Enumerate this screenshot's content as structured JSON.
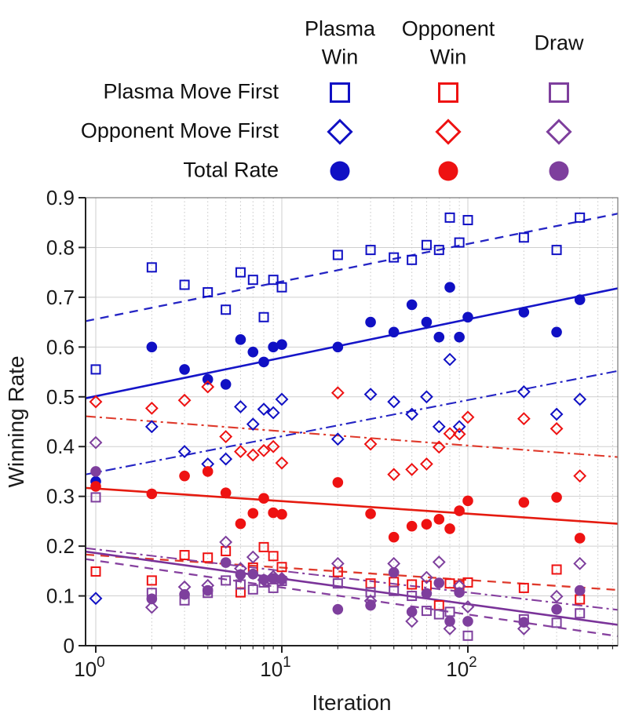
{
  "figure_title": "Winning rate vs iteration scatter plot with trend lines",
  "palette": {
    "blue": "#1010c4",
    "red": "#ee1212",
    "purple": "#7e3f9d",
    "blue_line": "#2424c4",
    "red_line": "#df3a2c",
    "purple_line": "#86419f",
    "grid_major": "#cfcfcf",
    "grid_minor": "#c7c7c7",
    "axis": "#222222",
    "box": "#777777",
    "text": "#1b1b1b"
  },
  "legend": {
    "columns": [
      {
        "id": "plasma-win",
        "header_lines": [
          "Plasma",
          "Win"
        ],
        "color": "#1010c4"
      },
      {
        "id": "opponent-win",
        "header_lines": [
          "Opponent",
          "Win"
        ],
        "color": "#ee1212"
      },
      {
        "id": "draw",
        "header_lines": [
          "Draw"
        ],
        "color": "#7e3f9d"
      }
    ],
    "rows": [
      {
        "id": "plasma-move-first",
        "label": "Plasma Move First",
        "marker": "square"
      },
      {
        "id": "opponent-move-first",
        "label": "Opponent Move First",
        "marker": "diamond"
      },
      {
        "id": "total-rate",
        "label": "Total Rate",
        "marker": "circle"
      }
    ]
  },
  "axes": {
    "xlabel": "Iteration",
    "ylabel": "Winning Rate",
    "x_scale": "log",
    "ylim": [
      0,
      0.9
    ],
    "ytick_labels": [
      "0",
      "0.1",
      "0.2",
      "0.3",
      "0.4",
      "0.5",
      "0.6",
      "0.7",
      "0.8",
      "0.9"
    ],
    "xticks": [
      {
        "mantissa": "10",
        "exponent": "0",
        "value": 1
      },
      {
        "mantissa": "10",
        "exponent": "1",
        "value": 10
      },
      {
        "mantissa": "10",
        "exponent": "2",
        "value": 100
      }
    ]
  },
  "chart_data": {
    "type": "scatter",
    "x_scale": "log",
    "title": "",
    "xlabel": "Iteration",
    "ylabel": "Winning Rate",
    "xlim": [
      0.88,
      640
    ],
    "ylim": [
      0,
      0.9
    ],
    "grid": true,
    "series": [
      {
        "name": "plasma-first-plasma-win",
        "outcome": "Plasma Win",
        "mover": "Plasma Move First",
        "marker": "square",
        "color": "#1010c4",
        "points": [
          [
            1,
            0.555
          ],
          [
            2,
            0.76
          ],
          [
            3,
            0.725
          ],
          [
            4,
            0.71
          ],
          [
            5,
            0.675
          ],
          [
            6,
            0.75
          ],
          [
            7,
            0.735
          ],
          [
            8,
            0.66
          ],
          [
            9,
            0.735
          ],
          [
            10,
            0.72
          ],
          [
            20,
            0.785
          ],
          [
            30,
            0.795
          ],
          [
            40,
            0.78
          ],
          [
            50,
            0.775
          ],
          [
            60,
            0.805
          ],
          [
            70,
            0.795
          ],
          [
            80,
            0.86
          ],
          [
            90,
            0.81
          ],
          [
            100,
            0.855
          ],
          [
            200,
            0.82
          ],
          [
            300,
            0.795
          ],
          [
            400,
            0.86
          ]
        ]
      },
      {
        "name": "opponent-first-plasma-win",
        "outcome": "Plasma Win",
        "mover": "Opponent Move First",
        "marker": "diamond",
        "color": "#1010c4",
        "points": [
          [
            1,
            0.095
          ],
          [
            2,
            0.44
          ],
          [
            3,
            0.39
          ],
          [
            4,
            0.365
          ],
          [
            5,
            0.375
          ],
          [
            6,
            0.48
          ],
          [
            7,
            0.445
          ],
          [
            8,
            0.475
          ],
          [
            9,
            0.468
          ],
          [
            10,
            0.495
          ],
          [
            20,
            0.415
          ],
          [
            30,
            0.505
          ],
          [
            40,
            0.49
          ],
          [
            50,
            0.465
          ],
          [
            60,
            0.5
          ],
          [
            70,
            0.44
          ],
          [
            80,
            0.575
          ],
          [
            90,
            0.44
          ],
          [
            200,
            0.51
          ],
          [
            300,
            0.465
          ],
          [
            400,
            0.495
          ]
        ]
      },
      {
        "name": "total-plasma-win",
        "outcome": "Plasma Win",
        "mover": "Total Rate",
        "marker": "circle",
        "color": "#1010c4",
        "points": [
          [
            1,
            0.33
          ],
          [
            2,
            0.6
          ],
          [
            3,
            0.555
          ],
          [
            4,
            0.535
          ],
          [
            5,
            0.525
          ],
          [
            6,
            0.615
          ],
          [
            7,
            0.59
          ],
          [
            8,
            0.57
          ],
          [
            9,
            0.6
          ],
          [
            10,
            0.605
          ],
          [
            20,
            0.6
          ],
          [
            30,
            0.65
          ],
          [
            40,
            0.63
          ],
          [
            50,
            0.685
          ],
          [
            60,
            0.65
          ],
          [
            70,
            0.62
          ],
          [
            80,
            0.72
          ],
          [
            90,
            0.62
          ],
          [
            100,
            0.66
          ],
          [
            200,
            0.67
          ],
          [
            300,
            0.63
          ],
          [
            400,
            0.695
          ]
        ]
      },
      {
        "name": "plasma-first-opponent-win",
        "outcome": "Opponent Win",
        "mover": "Plasma Move First",
        "marker": "square",
        "color": "#ee1212",
        "points": [
          [
            1,
            0.149
          ],
          [
            2,
            0.131
          ],
          [
            3,
            0.182
          ],
          [
            4,
            0.177
          ],
          [
            5,
            0.19
          ],
          [
            6,
            0.107
          ],
          [
            7,
            0.157
          ],
          [
            8,
            0.198
          ],
          [
            9,
            0.18
          ],
          [
            10,
            0.158
          ],
          [
            20,
            0.148
          ],
          [
            30,
            0.125
          ],
          [
            40,
            0.128
          ],
          [
            50,
            0.123
          ],
          [
            60,
            0.121
          ],
          [
            70,
            0.081
          ],
          [
            80,
            0.125
          ],
          [
            90,
            0.121
          ],
          [
            100,
            0.127
          ],
          [
            200,
            0.116
          ],
          [
            300,
            0.153
          ],
          [
            400,
            0.093
          ]
        ]
      },
      {
        "name": "opponent-first-opponent-win",
        "outcome": "Opponent Win",
        "mover": "Opponent Move First",
        "marker": "diamond",
        "color": "#ee1212",
        "points": [
          [
            1,
            0.49
          ],
          [
            2,
            0.477
          ],
          [
            3,
            0.493
          ],
          [
            4,
            0.52
          ],
          [
            5,
            0.42
          ],
          [
            6,
            0.39
          ],
          [
            7,
            0.383
          ],
          [
            8,
            0.392
          ],
          [
            9,
            0.4
          ],
          [
            10,
            0.367
          ],
          [
            20,
            0.508
          ],
          [
            30,
            0.405
          ],
          [
            40,
            0.344
          ],
          [
            50,
            0.354
          ],
          [
            60,
            0.365
          ],
          [
            70,
            0.399
          ],
          [
            80,
            0.426
          ],
          [
            90,
            0.425
          ],
          [
            100,
            0.459
          ],
          [
            200,
            0.456
          ],
          [
            300,
            0.436
          ],
          [
            400,
            0.341
          ]
        ]
      },
      {
        "name": "total-opponent-win",
        "outcome": "Opponent Win",
        "mover": "Total Rate",
        "marker": "circle",
        "color": "#ee1212",
        "points": [
          [
            1,
            0.32
          ],
          [
            2,
            0.305
          ],
          [
            3,
            0.341
          ],
          [
            4,
            0.35
          ],
          [
            5,
            0.307
          ],
          [
            6,
            0.245
          ],
          [
            7,
            0.266
          ],
          [
            8,
            0.296
          ],
          [
            9,
            0.267
          ],
          [
            10,
            0.264
          ],
          [
            20,
            0.328
          ],
          [
            30,
            0.265
          ],
          [
            40,
            0.218
          ],
          [
            50,
            0.24
          ],
          [
            60,
            0.244
          ],
          [
            70,
            0.254
          ],
          [
            80,
            0.235
          ],
          [
            90,
            0.271
          ],
          [
            100,
            0.291
          ],
          [
            200,
            0.288
          ],
          [
            300,
            0.298
          ],
          [
            400,
            0.216
          ]
        ]
      },
      {
        "name": "plasma-first-draw",
        "outcome": "Draw",
        "mover": "Plasma Move First",
        "marker": "square",
        "color": "#7e3f9d",
        "points": [
          [
            1,
            0.298
          ],
          [
            2,
            0.106
          ],
          [
            3,
            0.091
          ],
          [
            4,
            0.106
          ],
          [
            5,
            0.131
          ],
          [
            6,
            0.123
          ],
          [
            7,
            0.113
          ],
          [
            8,
            0.127
          ],
          [
            9,
            0.116
          ],
          [
            10,
            0.13
          ],
          [
            20,
            0.125
          ],
          [
            30,
            0.107
          ],
          [
            40,
            0.11
          ],
          [
            50,
            0.1
          ],
          [
            60,
            0.07
          ],
          [
            70,
            0.063
          ],
          [
            80,
            0.068
          ],
          [
            100,
            0.02
          ],
          [
            200,
            0.053
          ],
          [
            300,
            0.046
          ],
          [
            400,
            0.065
          ]
        ]
      },
      {
        "name": "opponent-first-draw",
        "outcome": "Draw",
        "mover": "Opponent Move First",
        "marker": "diamond",
        "color": "#7e3f9d",
        "points": [
          [
            1,
            0.408
          ],
          [
            2,
            0.077
          ],
          [
            3,
            0.118
          ],
          [
            4,
            0.121
          ],
          [
            5,
            0.208
          ],
          [
            6,
            0.155
          ],
          [
            7,
            0.178
          ],
          [
            8,
            0.132
          ],
          [
            9,
            0.139
          ],
          [
            10,
            0.135
          ],
          [
            20,
            0.165
          ],
          [
            30,
            0.09
          ],
          [
            40,
            0.165
          ],
          [
            50,
            0.049
          ],
          [
            60,
            0.137
          ],
          [
            70,
            0.168
          ],
          [
            80,
            0.034
          ],
          [
            90,
            0.12
          ],
          [
            100,
            0.078
          ],
          [
            200,
            0.034
          ],
          [
            300,
            0.099
          ],
          [
            400,
            0.165
          ]
        ]
      },
      {
        "name": "total-draw",
        "outcome": "Draw",
        "mover": "Total Rate",
        "marker": "circle",
        "color": "#7e3f9d",
        "points": [
          [
            1,
            0.35
          ],
          [
            2,
            0.094
          ],
          [
            3,
            0.103
          ],
          [
            4,
            0.111
          ],
          [
            5,
            0.167
          ],
          [
            6,
            0.143
          ],
          [
            7,
            0.144
          ],
          [
            8,
            0.133
          ],
          [
            9,
            0.135
          ],
          [
            10,
            0.133
          ],
          [
            20,
            0.073
          ],
          [
            30,
            0.081
          ],
          [
            40,
            0.147
          ],
          [
            50,
            0.068
          ],
          [
            60,
            0.105
          ],
          [
            70,
            0.126
          ],
          [
            80,
            0.049
          ],
          [
            90,
            0.107
          ],
          [
            100,
            0.049
          ],
          [
            200,
            0.047
          ],
          [
            300,
            0.073
          ],
          [
            400,
            0.111
          ]
        ]
      }
    ],
    "trend_lines": [
      {
        "name": "plasma-first-plasma-win-fit",
        "color": "#2424c4",
        "style": "dashed",
        "at_left": 0.652,
        "at_right": 0.868
      },
      {
        "name": "total-plasma-win-fit",
        "color": "#1515c8",
        "style": "solid",
        "at_left": 0.497,
        "at_right": 0.718
      },
      {
        "name": "opponent-first-plasma-win-fit",
        "color": "#2424c4",
        "style": "dashdot",
        "at_left": 0.344,
        "at_right": 0.552
      },
      {
        "name": "opponent-first-opponent-win-fit",
        "color": "#df3a2c",
        "style": "dashdot",
        "at_left": 0.461,
        "at_right": 0.379
      },
      {
        "name": "total-opponent-win-fit",
        "color": "#e51b10",
        "style": "solid",
        "at_left": 0.317,
        "at_right": 0.245
      },
      {
        "name": "plasma-first-opponent-win-fit",
        "color": "#df3a2c",
        "style": "dashed",
        "at_left": 0.183,
        "at_right": 0.112
      },
      {
        "name": "opponent-first-draw-fit",
        "color": "#86419f",
        "style": "dashdot",
        "at_left": 0.196,
        "at_right": 0.072
      },
      {
        "name": "total-draw-fit",
        "color": "#7a3399",
        "style": "solid",
        "at_left": 0.189,
        "at_right": 0.042
      },
      {
        "name": "plasma-first-draw-fit",
        "color": "#86419f",
        "style": "dashed",
        "at_left": 0.174,
        "at_right": 0.019
      }
    ]
  }
}
